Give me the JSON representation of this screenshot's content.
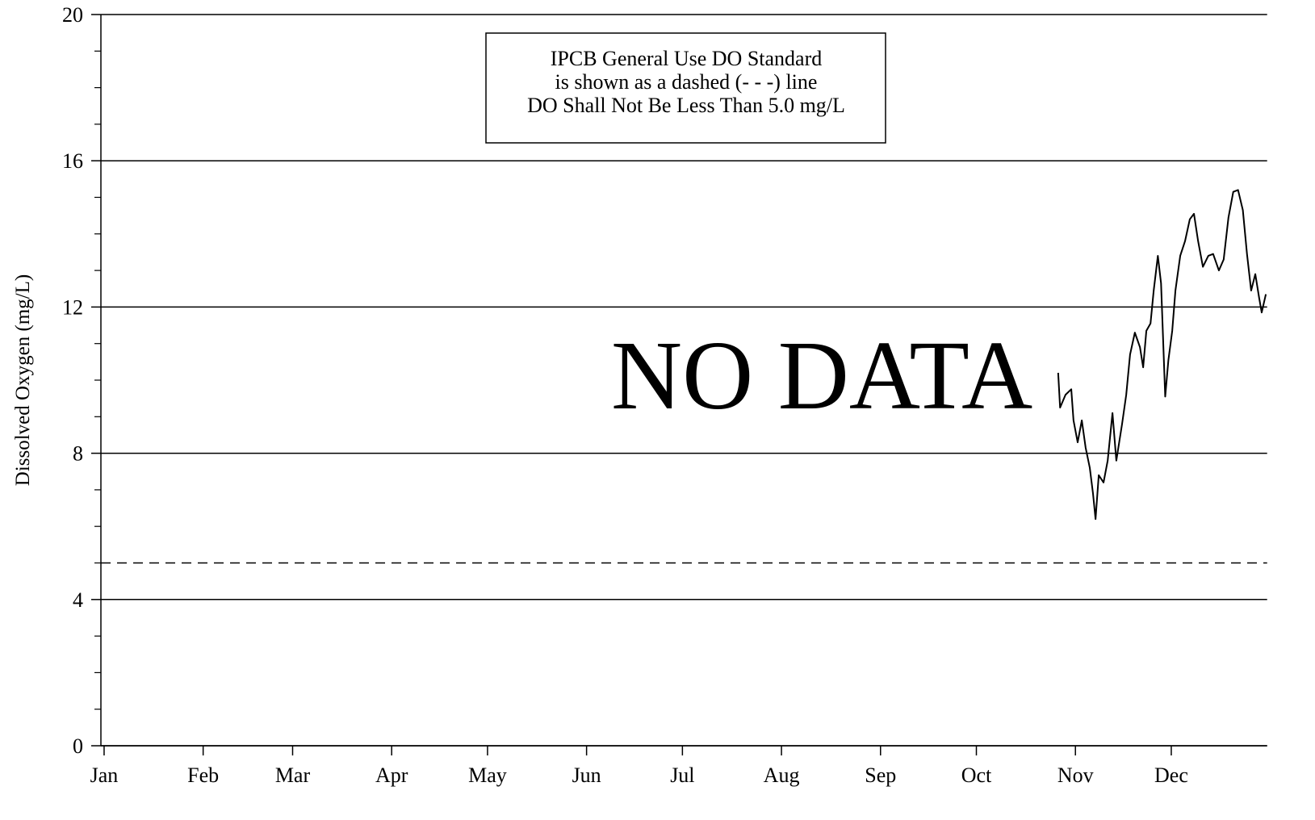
{
  "chart_data": {
    "type": "line",
    "ylabel": "Dissolved Oxygen (mg/L)",
    "annotation": [
      "IPCB General Use DO Standard",
      "is shown as a dashed (- - -) line",
      "DO Shall Not Be Less Than 5.0 mg/L"
    ],
    "no_data_label": "NO DATA",
    "xlim": [
      0,
      365
    ],
    "xticks": [
      {
        "value": 1,
        "label": "Jan"
      },
      {
        "value": 32,
        "label": "Feb"
      },
      {
        "value": 60,
        "label": "Mar"
      },
      {
        "value": 91,
        "label": "Apr"
      },
      {
        "value": 121,
        "label": "May"
      },
      {
        "value": 152,
        "label": "Jun"
      },
      {
        "value": 182,
        "label": "Jul"
      },
      {
        "value": 213,
        "label": "Aug"
      },
      {
        "value": 244,
        "label": "Sep"
      },
      {
        "value": 274,
        "label": "Oct"
      },
      {
        "value": 305,
        "label": "Nov"
      },
      {
        "value": 335,
        "label": "Dec"
      }
    ],
    "ylim": [
      0,
      20
    ],
    "yticks": [
      0,
      4,
      8,
      12,
      16,
      20
    ],
    "minor_yticks": [
      1,
      2,
      3,
      5,
      6,
      7,
      9,
      10,
      11,
      13,
      14,
      15,
      17,
      18,
      19
    ],
    "grid": true,
    "reference_line": {
      "value": 5,
      "style": "dashed"
    },
    "series": [
      {
        "color": "#000000",
        "x": [
          299.6,
          300.2,
          301.9,
          303.7,
          304.4,
          305.7,
          307.0,
          308.2,
          309.5,
          310.5,
          311.3,
          312.3,
          313.8,
          315.1,
          316.6,
          317.8,
          319.6,
          320.9,
          322.1,
          323.6,
          325.2,
          326.2,
          327.2,
          328.5,
          329.5,
          330.8,
          331.8,
          333.1,
          334.1,
          335.3,
          336.3,
          337.8,
          339.3,
          340.8,
          342.1,
          343.4,
          344.9,
          346.6,
          348.1,
          349.9,
          351.4,
          352.9,
          354.4,
          355.9,
          357.4,
          358.7,
          360.0,
          361.3,
          362.5,
          363.3,
          364.6
        ],
        "values": [
          10.2,
          9.25,
          9.6,
          9.75,
          8.9,
          8.3,
          8.9,
          8.15,
          7.6,
          6.9,
          6.2,
          7.4,
          7.2,
          7.8,
          9.1,
          7.8,
          8.8,
          9.6,
          10.7,
          11.3,
          10.9,
          10.35,
          11.35,
          11.55,
          12.45,
          13.4,
          12.65,
          9.55,
          10.55,
          11.35,
          12.45,
          13.4,
          13.8,
          14.4,
          14.55,
          13.8,
          13.1,
          13.4,
          13.45,
          13.0,
          13.3,
          14.45,
          15.15,
          15.2,
          14.65,
          13.45,
          12.45,
          12.9,
          12.25,
          11.85,
          12.35
        ]
      }
    ]
  }
}
